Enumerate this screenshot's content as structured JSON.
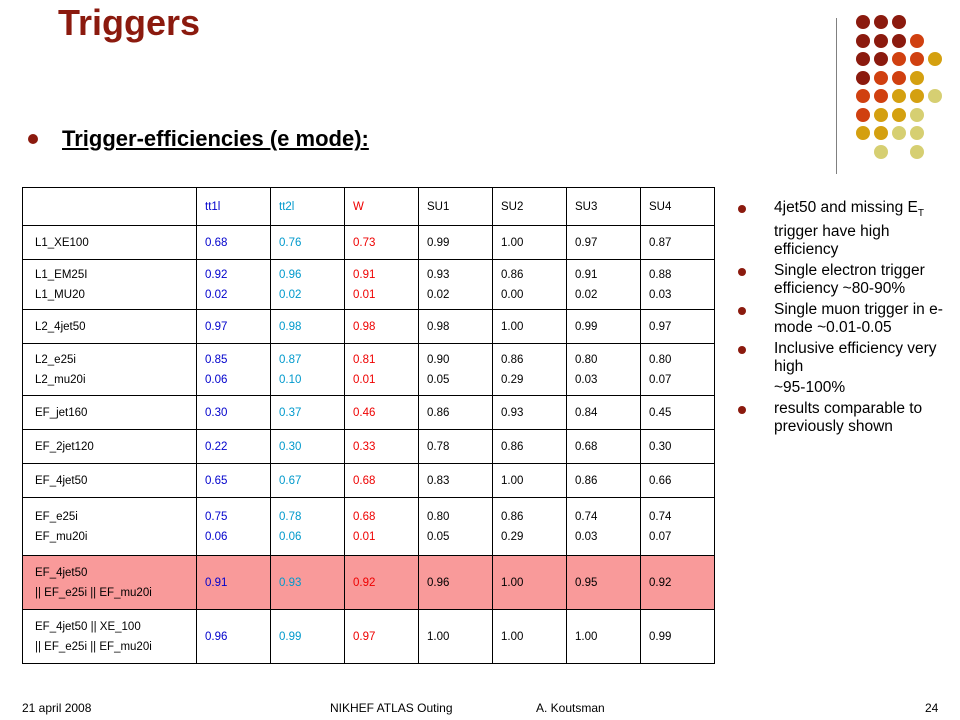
{
  "title": "Triggers",
  "heading": "Trigger-efficiencies (e mode):",
  "table": {
    "header": [
      "",
      "tt1l",
      "tt2l",
      "W",
      "SU1",
      "SU2",
      "SU3",
      "SU4"
    ],
    "rows": [
      {
        "label": [
          "L1_XE100"
        ],
        "cells": [
          [
            "0.68"
          ],
          [
            "0.76"
          ],
          [
            "0.73"
          ],
          [
            "0.99"
          ],
          [
            "1.00"
          ],
          [
            "0.97"
          ],
          [
            "0.87"
          ]
        ],
        "highlight": false
      },
      {
        "label": [
          "L1_EM25I",
          "L1_MU20"
        ],
        "cells": [
          [
            "0.92",
            "0.02"
          ],
          [
            "0.96",
            "0.02"
          ],
          [
            "0.91",
            "0.01"
          ],
          [
            "0.93",
            "0.02"
          ],
          [
            "0.86",
            "0.00"
          ],
          [
            "0.91",
            "0.02"
          ],
          [
            "0.88",
            "0.03"
          ]
        ],
        "highlight": false
      },
      {
        "label": [
          "L2_4jet50"
        ],
        "cells": [
          [
            "0.97"
          ],
          [
            "0.98"
          ],
          [
            "0.98"
          ],
          [
            "0.98"
          ],
          [
            "1.00"
          ],
          [
            "0.99"
          ],
          [
            "0.97"
          ]
        ],
        "highlight": false
      },
      {
        "label": [
          "L2_e25i",
          "L2_mu20i"
        ],
        "cells": [
          [
            "0.85",
            "0.06"
          ],
          [
            "0.87",
            "0.10"
          ],
          [
            "0.81",
            "0.01"
          ],
          [
            "0.90",
            "0.05"
          ],
          [
            "0.86",
            "0.29"
          ],
          [
            "0.80",
            "0.03"
          ],
          [
            "0.80",
            "0.07"
          ]
        ],
        "highlight": false
      },
      {
        "label": [
          "EF_jet160"
        ],
        "cells": [
          [
            "0.30"
          ],
          [
            "0.37"
          ],
          [
            "0.46"
          ],
          [
            "0.86"
          ],
          [
            "0.93"
          ],
          [
            "0.84"
          ],
          [
            "0.45"
          ]
        ],
        "highlight": false
      },
      {
        "label": [
          "EF_2jet120"
        ],
        "cells": [
          [
            "0.22"
          ],
          [
            "0.30"
          ],
          [
            "0.33"
          ],
          [
            "0.78"
          ],
          [
            "0.86"
          ],
          [
            "0.68"
          ],
          [
            "0.30"
          ]
        ],
        "highlight": false
      },
      {
        "label": [
          "EF_4jet50"
        ],
        "cells": [
          [
            "0.65"
          ],
          [
            "0.67"
          ],
          [
            "0.68"
          ],
          [
            "0.83"
          ],
          [
            "1.00"
          ],
          [
            "0.86"
          ],
          [
            "0.66"
          ]
        ],
        "highlight": false
      },
      {
        "label": [
          "EF_e25i",
          "EF_mu20i"
        ],
        "cells": [
          [
            "0.75",
            "0.06"
          ],
          [
            "0.78",
            "0.06"
          ],
          [
            "0.68",
            "0.01"
          ],
          [
            "0.80",
            "0.05"
          ],
          [
            "0.86",
            "0.29"
          ],
          [
            "0.74",
            "0.03"
          ],
          [
            "0.74",
            "0.07"
          ]
        ],
        "highlight": false
      },
      {
        "label": [
          "EF_4jet50",
          "|| EF_e25i || EF_mu20i"
        ],
        "cells": [
          [
            "0.91"
          ],
          [
            "0.93"
          ],
          [
            "0.92"
          ],
          [
            "0.96"
          ],
          [
            "1.00"
          ],
          [
            "0.95"
          ],
          [
            "0.92"
          ]
        ],
        "highlight": true
      },
      {
        "label": [
          "EF_4jet50 || XE_100",
          "|| EF_e25i || EF_mu20i"
        ],
        "cells": [
          [
            "0.96"
          ],
          [
            "0.99"
          ],
          [
            "0.97"
          ],
          [
            "1.00"
          ],
          [
            "1.00"
          ],
          [
            "1.00"
          ],
          [
            "0.99"
          ]
        ],
        "highlight": false
      }
    ]
  },
  "bullets": [
    {
      "lines": [
        "4jet50 and missing E",
        "T",
        " trigger have high efficiency"
      ]
    },
    {
      "lines": [
        "Single electron trigger efficiency ~80-90%"
      ]
    },
    {
      "lines": [
        "Single muon trigger in e-mode ~0.01-0.05"
      ]
    },
    {
      "lines": [
        "Inclusive efficiency very high"
      ],
      "cont": "~95-100%"
    },
    {
      "lines": [
        "results comparable to previously shown"
      ]
    }
  ],
  "footer": {
    "date": "21 april 2008",
    "event": "NIKHEF ATLAS Outing",
    "author": "A. Koutsman",
    "page": "24"
  },
  "colors": {
    "title": "#8b1a0e",
    "tt1l": "#0000cc",
    "tt2l": "#0099cc",
    "W": "#ee0000",
    "highlight_row": "#f99a9a"
  }
}
